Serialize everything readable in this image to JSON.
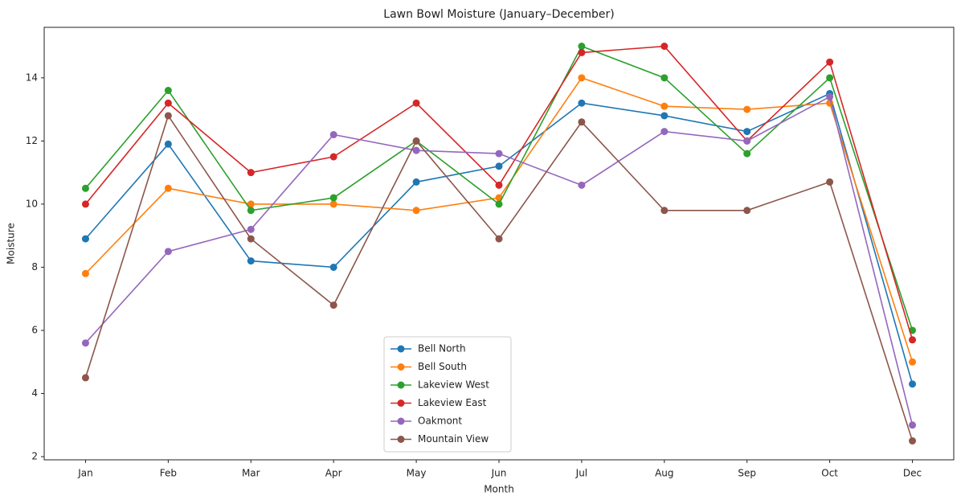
{
  "chart_data": {
    "type": "line",
    "title": "Lawn Bowl Moisture (January–December)",
    "x_label": "Month",
    "y_label": "Moisture",
    "categories": [
      "Jan",
      "Feb",
      "Mar",
      "Apr",
      "May",
      "Jun",
      "Jul",
      "Aug",
      "Sep",
      "Oct",
      "Dec"
    ],
    "ylim": [
      1.9,
      15.6
    ],
    "yticks": [
      2,
      4,
      6,
      8,
      10,
      12,
      14
    ],
    "legend": "lower center",
    "series": [
      {
        "name": "Bell North",
        "color": "#1f77b4",
        "values": [
          8.9,
          11.9,
          8.2,
          8.0,
          10.7,
          11.2,
          13.2,
          12.8,
          12.3,
          13.5,
          4.3
        ]
      },
      {
        "name": "Bell South",
        "color": "#ff7f0e",
        "values": [
          7.8,
          10.5,
          10.0,
          10.0,
          9.8,
          10.2,
          14.0,
          13.1,
          13.0,
          13.2,
          5.0
        ]
      },
      {
        "name": "Lakeview West",
        "color": "#2ca02c",
        "values": [
          10.5,
          13.6,
          9.8,
          10.2,
          12.0,
          10.0,
          15.0,
          14.0,
          11.6,
          14.0,
          6.0
        ]
      },
      {
        "name": "Lakeview East",
        "color": "#d62728",
        "values": [
          10.0,
          13.2,
          11.0,
          11.5,
          13.2,
          10.6,
          14.8,
          15.0,
          12.0,
          14.5,
          5.7
        ]
      },
      {
        "name": "Oakmont",
        "color": "#9467bd",
        "values": [
          5.6,
          8.5,
          9.2,
          12.2,
          11.7,
          11.6,
          10.6,
          12.3,
          12.0,
          13.4,
          3.0
        ]
      },
      {
        "name": "Mountain View",
        "color": "#8c564b",
        "values": [
          4.5,
          12.8,
          8.9,
          6.8,
          12.0,
          8.9,
          12.6,
          9.8,
          9.8,
          10.7,
          2.5
        ]
      }
    ]
  }
}
